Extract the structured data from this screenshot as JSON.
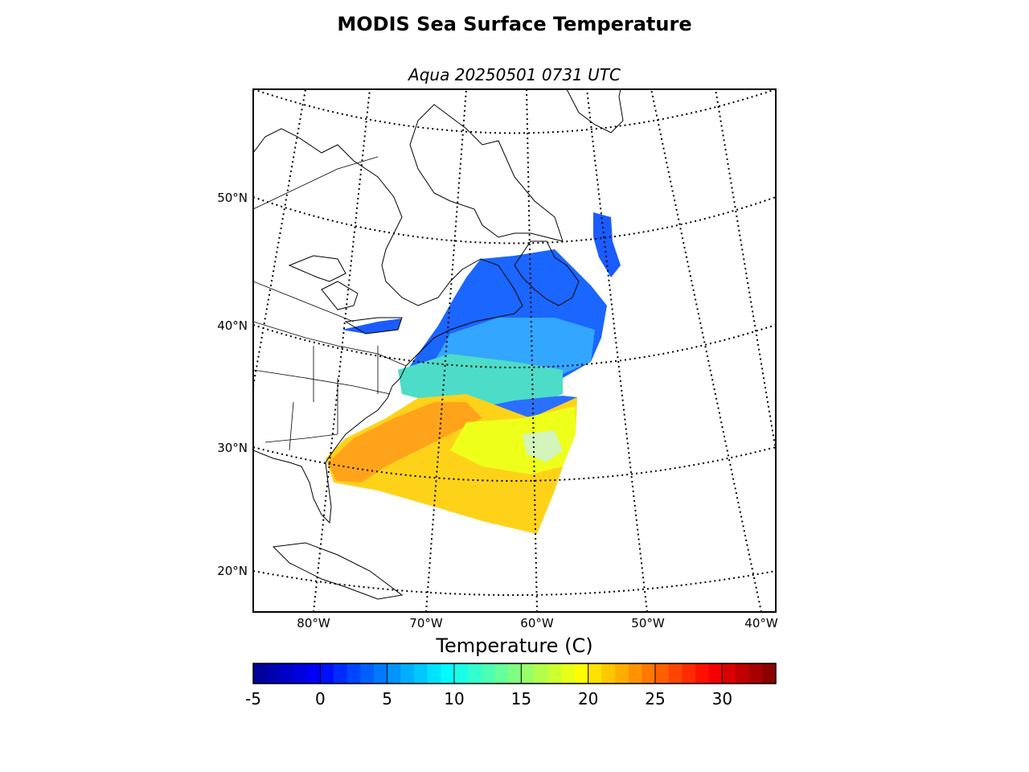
{
  "title": "MODIS Sea Surface Temperature",
  "subtitle": "Aqua 20250501 0731 UTC",
  "map": {
    "projection": "conic",
    "lat_labels": [
      "20°N",
      "30°N",
      "40°N",
      "50°N"
    ],
    "lon_labels": [
      "80°W",
      "70°W",
      "60°W",
      "50°W",
      "40°W"
    ],
    "graticule_style": "dotted",
    "coastline_color": "#000000",
    "no_data_color": "#ffffff"
  },
  "colorbar": {
    "label": "Temperature (C)",
    "colormap": "jet",
    "min": -5,
    "max": 34,
    "ticks": [
      {
        "value": -5,
        "label": "-5"
      },
      {
        "value": 0,
        "label": "0"
      },
      {
        "value": 5,
        "label": "5"
      },
      {
        "value": 10,
        "label": "10"
      },
      {
        "value": 15,
        "label": "15"
      },
      {
        "value": 20,
        "label": "20"
      },
      {
        "value": 25,
        "label": "25"
      },
      {
        "value": 30,
        "label": "30"
      }
    ],
    "colors": [
      "#00008f",
      "#0000ff",
      "#0080ff",
      "#00ffff",
      "#80ff80",
      "#ffff00",
      "#ff8000",
      "#ff0000",
      "#800000"
    ]
  }
}
